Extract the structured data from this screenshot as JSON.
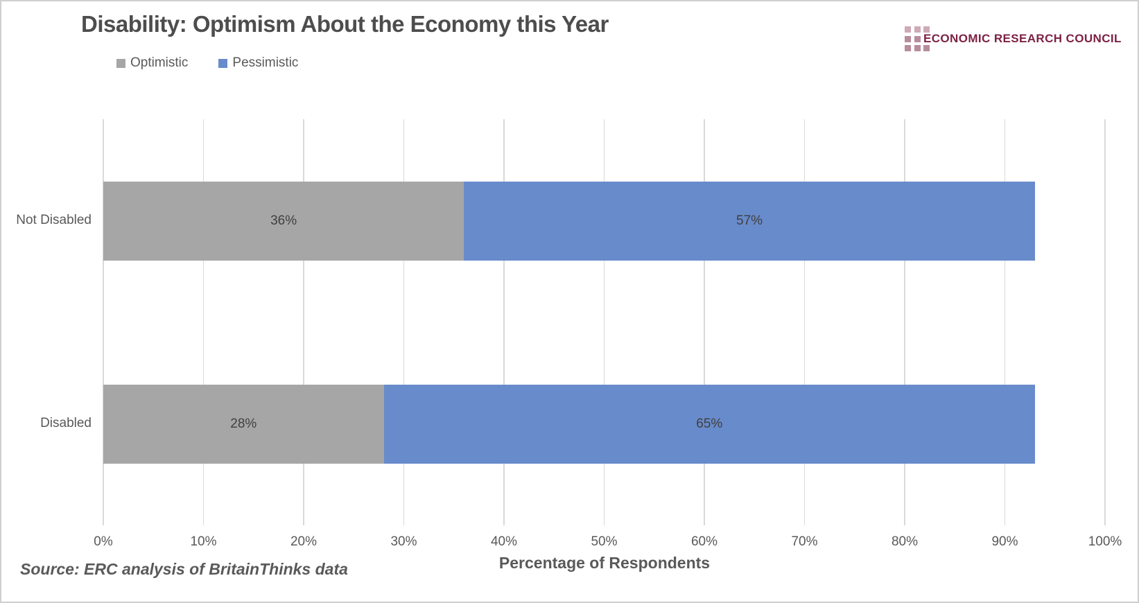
{
  "header": {
    "title": "Disability: Optimism About the Economy this Year",
    "logo": {
      "text": "ECONOMIC RESEARCH COUNCIL"
    }
  },
  "source_note": "Source: ERC analysis of BritainThinks data",
  "chart_data": {
    "type": "bar",
    "orientation": "horizontal",
    "stacked": true,
    "title": "Disability: Optimism About the Economy this Year",
    "categories": [
      "Not Disabled",
      "Disabled"
    ],
    "series": [
      {
        "name": "Optimistic",
        "color": "#a6a6a6",
        "values": [
          36,
          28
        ]
      },
      {
        "name": "Pessimistic",
        "color": "#688bcb",
        "values": [
          57,
          65
        ]
      }
    ],
    "data_labels": [
      [
        "36%",
        "57%"
      ],
      [
        "28%",
        "65%"
      ]
    ],
    "xlabel": "Percentage of Respondents",
    "ylabel": "",
    "x_ticks": [
      "0%",
      "10%",
      "20%",
      "30%",
      "40%",
      "50%",
      "60%",
      "70%",
      "80%",
      "90%",
      "100%"
    ],
    "xlim": [
      0,
      100
    ],
    "grid": true,
    "legend_position": "top-left"
  },
  "colors": {
    "gridline": "#d9d9d9",
    "title_text": "#4d4d4d",
    "axis_text": "#595959",
    "data_label_text": "#404040",
    "logo_text": "#7d2144",
    "logo_square_light": "#cdaab6",
    "logo_square_dark": "#b78c9d"
  }
}
